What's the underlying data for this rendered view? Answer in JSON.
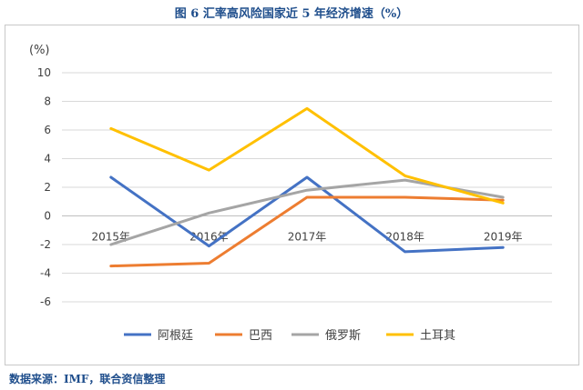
{
  "figure_title": "图 6  汇率高风险国家近 5 年经济增速（%）",
  "source_note": "数据来源：IMF，联合资信整理",
  "colors": {
    "argentina": "#4472c4",
    "brazil": "#ed7d31",
    "russia": "#a5a5a5",
    "turkey": "#ffc000"
  },
  "chart_data": {
    "type": "line",
    "title": "",
    "ylabel": "(%)",
    "xlabel": "",
    "categories": [
      "2015年",
      "2016年",
      "2017年",
      "2018年",
      "2019年"
    ],
    "ylim": [
      -6,
      10
    ],
    "yticks": [
      "10",
      "8",
      "6",
      "4",
      "2",
      "0",
      "-2",
      "-4",
      "-6"
    ],
    "grid": true,
    "legend_position": "bottom",
    "series": [
      {
        "name": "阿根廷",
        "color": "#4472c4",
        "values": [
          2.7,
          -2.1,
          2.7,
          -2.5,
          -2.2
        ]
      },
      {
        "name": "巴西",
        "color": "#ed7d31",
        "values": [
          -3.5,
          -3.3,
          1.3,
          1.3,
          1.1
        ]
      },
      {
        "name": "俄罗斯",
        "color": "#a5a5a5",
        "values": [
          -2.0,
          0.2,
          1.8,
          2.5,
          1.3
        ]
      },
      {
        "name": "土耳其",
        "color": "#ffc000",
        "values": [
          6.1,
          3.2,
          7.5,
          2.8,
          0.9
        ]
      }
    ]
  }
}
